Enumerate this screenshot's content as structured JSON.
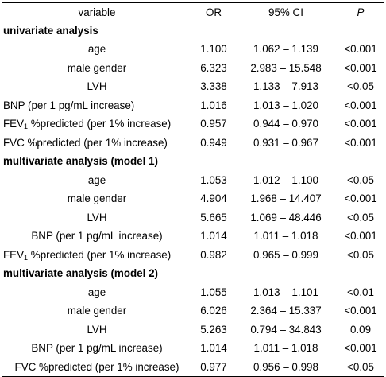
{
  "header": {
    "variable": "variable",
    "or": "OR",
    "ci": "95% CI",
    "p": "P"
  },
  "sections": [
    {
      "title": "univariate analysis",
      "rows": [
        {
          "variable": "age",
          "or": "1.100",
          "ci": "1.062 – 1.139",
          "p": "<0.001",
          "align": "center"
        },
        {
          "variable": "male gender",
          "or": "6.323",
          "ci": "2.983 – 15.548",
          "p": "<0.001",
          "align": "center"
        },
        {
          "variable": "LVH",
          "or": "3.338",
          "ci": "1.133 – 7.913",
          "p": "<0.05",
          "align": "center"
        },
        {
          "variable": "BNP (per 1 pg/mL increase)",
          "or": "1.016",
          "ci": "1.013 – 1.020",
          "p": "<0.001",
          "align": "left"
        },
        {
          "variable_pre": "FEV",
          "variable_sub": "1",
          "variable_post": " %predicted (per 1% increase)",
          "or": "0.957",
          "ci": "0.944 – 0.970",
          "p": "<0.001",
          "align": "left"
        },
        {
          "variable": "FVC %predicted (per 1% increase)",
          "or": "0.949",
          "ci": "0.931 – 0.967",
          "p": "<0.001",
          "align": "left"
        }
      ]
    },
    {
      "title": "multivariate analysis (model 1)",
      "rows": [
        {
          "variable": "age",
          "or": "1.053",
          "ci": "1.012 – 1.100",
          "p": "<0.05",
          "align": "center"
        },
        {
          "variable": "male gender",
          "or": "4.904",
          "ci": "1.968 – 14.407",
          "p": "<0.001",
          "align": "center"
        },
        {
          "variable": "LVH",
          "or": "5.665",
          "ci": "1.069 – 48.446",
          "p": "<0.05",
          "align": "center"
        },
        {
          "variable": "BNP (per 1 pg/mL increase)",
          "or": "1.014",
          "ci": "1.011 – 1.018",
          "p": "<0.001",
          "align": "center"
        },
        {
          "variable_pre": "FEV",
          "variable_sub": "1",
          "variable_post": " %predicted (per 1% increase)",
          "or": "0.982",
          "ci": "0.965 – 0.999",
          "p": "<0.05",
          "align": "left"
        }
      ]
    },
    {
      "title": "multivariate analysis (model 2)",
      "rows": [
        {
          "variable": "age",
          "or": "1.055",
          "ci": "1.013 – 1.101",
          "p": "<0.01",
          "align": "center"
        },
        {
          "variable": "male gender",
          "or": "6.026",
          "ci": "2.364 – 15.337",
          "p": "<0.001",
          "align": "center"
        },
        {
          "variable": "LVH",
          "or": "5.263",
          "ci": "0.794 – 34.843",
          "p": "0.09",
          "align": "center"
        },
        {
          "variable": "BNP (per 1 pg/mL increase)",
          "or": "1.014",
          "ci": "1.011 – 1.018",
          "p": "<0.001",
          "align": "center"
        },
        {
          "variable": "FVC %predicted (per 1% increase)",
          "or": "0.977",
          "ci": "0.956 – 0.998",
          "p": "<0.05",
          "align": "center"
        }
      ]
    }
  ]
}
